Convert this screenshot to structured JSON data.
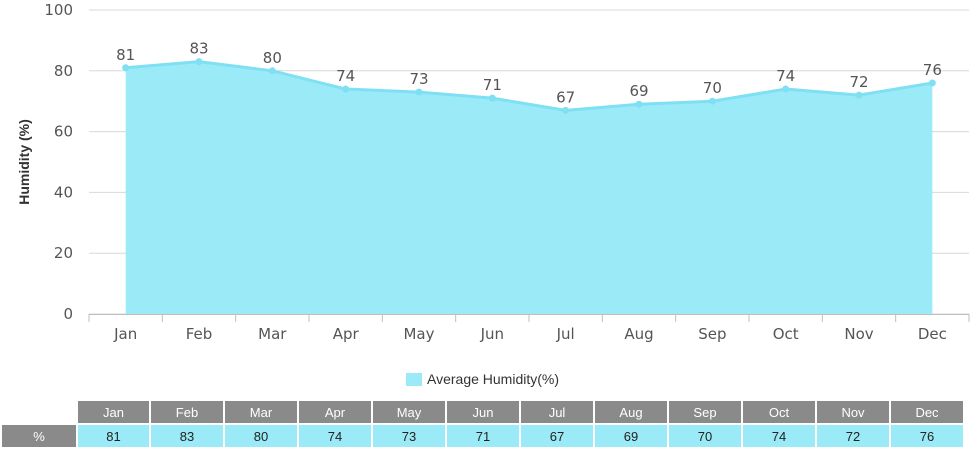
{
  "chart_data": {
    "type": "area",
    "categories": [
      "Jan",
      "Feb",
      "Mar",
      "Apr",
      "May",
      "Jun",
      "Jul",
      "Aug",
      "Sep",
      "Oct",
      "Nov",
      "Dec"
    ],
    "series": [
      {
        "name": "Average Humidity(%)",
        "values": [
          81,
          83,
          80,
          74,
          73,
          71,
          67,
          69,
          70,
          74,
          72,
          76
        ]
      }
    ],
    "title": "",
    "xlabel": "",
    "ylabel": "Humidity (%)",
    "ylim": [
      0,
      100
    ],
    "yticks": [
      0,
      20,
      40,
      60,
      80,
      100
    ],
    "grid": true,
    "legend_position": "bottom",
    "data_labels": true
  },
  "colors": {
    "area_fill": "#9beaf7",
    "line": "#7fe0f3",
    "grid": "#d8d8d8",
    "table_header": "#8a8a8a",
    "table_values": "#9beaf7"
  },
  "table": {
    "row_label": "%",
    "headers": [
      "Jan",
      "Feb",
      "Mar",
      "Apr",
      "May",
      "Jun",
      "Jul",
      "Aug",
      "Sep",
      "Oct",
      "Nov",
      "Dec"
    ],
    "values": [
      "81",
      "83",
      "80",
      "74",
      "73",
      "71",
      "67",
      "69",
      "70",
      "74",
      "72",
      "76"
    ]
  }
}
